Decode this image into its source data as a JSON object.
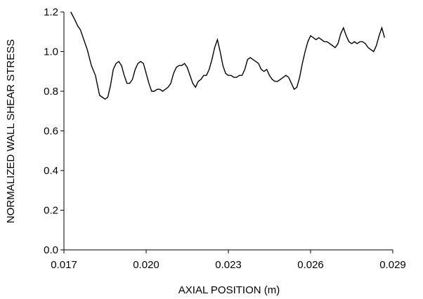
{
  "chart_data": {
    "type": "line",
    "title": "",
    "xlabel": "AXIAL POSITION (m)",
    "ylabel": "NORMALIZED WALL SHEAR STRESS",
    "xlim": [
      0.017,
      0.029
    ],
    "ylim": [
      0.0,
      1.2
    ],
    "xticks": [
      "0.017",
      "0.020",
      "0.023",
      "0.026",
      "0.029"
    ],
    "yticks": [
      "0.0",
      "0.2",
      "0.4",
      "0.6",
      "0.8",
      "1.0",
      "1.2"
    ],
    "grid": false,
    "legend": "none",
    "line_color": "#000000",
    "series": [
      {
        "x": [
          0.01725,
          0.0174,
          0.0175,
          0.0176,
          0.0177,
          0.01785,
          0.018,
          0.01815,
          0.0183,
          0.0184,
          0.0185,
          0.0186,
          0.0187,
          0.0188,
          0.0189,
          0.019,
          0.0191,
          0.0192,
          0.0193,
          0.0194,
          0.0195,
          0.0196,
          0.0197,
          0.0198,
          0.0199,
          0.02,
          0.0201,
          0.0202,
          0.0203,
          0.0204,
          0.0205,
          0.0206,
          0.0207,
          0.0208,
          0.0209,
          0.021,
          0.0211,
          0.0212,
          0.0213,
          0.0214,
          0.0215,
          0.0216,
          0.0217,
          0.0218,
          0.0219,
          0.022,
          0.0221,
          0.0222,
          0.0223,
          0.0224,
          0.0225,
          0.0226,
          0.0227,
          0.0228,
          0.0229,
          0.023,
          0.0231,
          0.0232,
          0.0233,
          0.0234,
          0.0235,
          0.0236,
          0.0237,
          0.0238,
          0.0239,
          0.024,
          0.0241,
          0.0242,
          0.0243,
          0.0244,
          0.0245,
          0.0246,
          0.0247,
          0.0248,
          0.0249,
          0.025,
          0.0251,
          0.0252,
          0.0253,
          0.0254,
          0.0255,
          0.0256,
          0.0257,
          0.0258,
          0.0259,
          0.026,
          0.0261,
          0.0262,
          0.0263,
          0.0264,
          0.0265,
          0.0266,
          0.0267,
          0.0268,
          0.0269,
          0.027,
          0.0271,
          0.0272,
          0.0273,
          0.0274,
          0.0275,
          0.0276,
          0.0277,
          0.0278,
          0.0279,
          0.028,
          0.0281,
          0.0282,
          0.0283,
          0.0284,
          0.0285,
          0.0286,
          0.0287
        ],
        "y": [
          1.2,
          1.16,
          1.13,
          1.11,
          1.07,
          1.01,
          0.93,
          0.88,
          0.78,
          0.77,
          0.76,
          0.77,
          0.83,
          0.91,
          0.94,
          0.95,
          0.93,
          0.88,
          0.84,
          0.84,
          0.86,
          0.91,
          0.94,
          0.95,
          0.94,
          0.89,
          0.84,
          0.8,
          0.8,
          0.81,
          0.81,
          0.8,
          0.81,
          0.82,
          0.84,
          0.89,
          0.92,
          0.93,
          0.93,
          0.94,
          0.92,
          0.88,
          0.84,
          0.82,
          0.85,
          0.86,
          0.88,
          0.88,
          0.91,
          0.96,
          1.02,
          1.06,
          1.0,
          0.93,
          0.89,
          0.88,
          0.88,
          0.87,
          0.87,
          0.88,
          0.88,
          0.91,
          0.96,
          0.97,
          0.96,
          0.95,
          0.94,
          0.91,
          0.9,
          0.91,
          0.88,
          0.86,
          0.85,
          0.85,
          0.86,
          0.87,
          0.88,
          0.87,
          0.84,
          0.81,
          0.82,
          0.87,
          0.94,
          1.0,
          1.05,
          1.08,
          1.07,
          1.06,
          1.07,
          1.06,
          1.05,
          1.05,
          1.04,
          1.03,
          1.02,
          1.04,
          1.09,
          1.12,
          1.08,
          1.05,
          1.04,
          1.05,
          1.04,
          1.05,
          1.05,
          1.04,
          1.02,
          1.01,
          1.0,
          1.03,
          1.08,
          1.12,
          1.07
        ]
      }
    ]
  }
}
